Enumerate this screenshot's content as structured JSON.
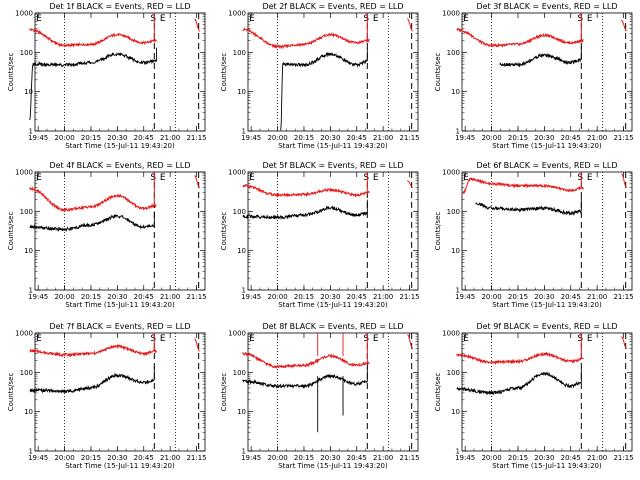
{
  "figure": {
    "x_tick_labels": [
      "19:45",
      "20:00",
      "20:15",
      "20:30",
      "20:45",
      "21:00",
      "21:15"
    ],
    "y_tick_labels": [
      "1",
      "10",
      "100",
      "1000"
    ],
    "ylabel": "Counts/sec",
    "xlabel": "Start Time (15-Jul-11 19:43:20)",
    "s_marker": "S",
    "e_marker": "E"
  },
  "chart_data": [
    {
      "type": "line",
      "title": "Det 1f BLACK = Events, RED = LLD",
      "yscale": "log",
      "ylim": [
        1,
        1000
      ],
      "black": [
        [
          19.67,
          2
        ],
        [
          19.7,
          50
        ],
        [
          20.0,
          48
        ],
        [
          20.25,
          55
        ],
        [
          20.5,
          90
        ],
        [
          20.75,
          55
        ],
        [
          20.87,
          60
        ]
      ],
      "red": [
        [
          19.67,
          380
        ],
        [
          20.0,
          150
        ],
        [
          20.25,
          160
        ],
        [
          20.5,
          280
        ],
        [
          20.75,
          175
        ],
        [
          20.87,
          200
        ],
        [
          21.23,
          700
        ],
        [
          21.28,
          350
        ]
      ],
      "spikes": []
    },
    {
      "type": "line",
      "title": "Det 2f BLACK = Events, RED = LLD",
      "yscale": "log",
      "ylim": [
        1,
        1000
      ],
      "black": [
        [
          20.03,
          1
        ],
        [
          20.05,
          50
        ],
        [
          20.25,
          48
        ],
        [
          20.5,
          90
        ],
        [
          20.75,
          48
        ],
        [
          20.85,
          60
        ]
      ],
      "red": [
        [
          19.67,
          380
        ],
        [
          20.0,
          140
        ],
        [
          20.25,
          160
        ],
        [
          20.5,
          280
        ],
        [
          20.75,
          175
        ],
        [
          20.87,
          200
        ],
        [
          21.23,
          700
        ],
        [
          21.28,
          350
        ]
      ],
      "spikes": []
    },
    {
      "type": "line",
      "title": "Det 3f BLACK = Events, RED = LLD",
      "yscale": "log",
      "ylim": [
        1,
        1000
      ],
      "black": [
        [
          20.08,
          50
        ],
        [
          20.25,
          48
        ],
        [
          20.5,
          85
        ],
        [
          20.75,
          55
        ],
        [
          20.85,
          65
        ]
      ],
      "red": [
        [
          19.67,
          380
        ],
        [
          20.0,
          150
        ],
        [
          20.25,
          160
        ],
        [
          20.5,
          270
        ],
        [
          20.75,
          175
        ],
        [
          20.87,
          200
        ],
        [
          21.23,
          650
        ],
        [
          21.28,
          350
        ]
      ],
      "spikes": []
    },
    {
      "type": "line",
      "title": "Det 4f BLACK = Events, RED = LLD",
      "yscale": "log",
      "ylim": [
        1,
        1000
      ],
      "black": [
        [
          19.67,
          40
        ],
        [
          20.0,
          35
        ],
        [
          20.25,
          45
        ],
        [
          20.5,
          75
        ],
        [
          20.75,
          40
        ],
        [
          20.85,
          45
        ]
      ],
      "red": [
        [
          19.67,
          380
        ],
        [
          20.0,
          110
        ],
        [
          20.25,
          130
        ],
        [
          20.5,
          250
        ],
        [
          20.75,
          120
        ],
        [
          20.87,
          140
        ],
        [
          21.23,
          800
        ],
        [
          21.28,
          400
        ]
      ],
      "spikes": []
    },
    {
      "type": "line",
      "title": "Det 5f BLACK = Events, RED = LLD",
      "yscale": "log",
      "ylim": [
        1,
        1000
      ],
      "black": [
        [
          19.67,
          75
        ],
        [
          20.0,
          70
        ],
        [
          20.25,
          80
        ],
        [
          20.5,
          120
        ],
        [
          20.75,
          80
        ],
        [
          20.85,
          90
        ]
      ],
      "red": [
        [
          19.67,
          450
        ],
        [
          20.0,
          260
        ],
        [
          20.25,
          270
        ],
        [
          20.5,
          350
        ],
        [
          20.75,
          260
        ],
        [
          20.87,
          300
        ],
        [
          21.23,
          600
        ],
        [
          21.28,
          400
        ]
      ],
      "spikes": []
    },
    {
      "type": "line",
      "title": "Det 6f BLACK = Events, RED = LLD",
      "yscale": "log",
      "ylim": [
        1,
        1000
      ],
      "black": [
        [
          19.85,
          160
        ],
        [
          20.0,
          120
        ],
        [
          20.25,
          110
        ],
        [
          20.5,
          120
        ],
        [
          20.75,
          90
        ],
        [
          20.85,
          100
        ]
      ],
      "red": [
        [
          19.73,
          300
        ],
        [
          19.8,
          650
        ],
        [
          20.0,
          500
        ],
        [
          20.25,
          450
        ],
        [
          20.5,
          450
        ],
        [
          20.75,
          340
        ],
        [
          20.87,
          400
        ],
        [
          21.23,
          900
        ],
        [
          21.28,
          400
        ]
      ],
      "spikes": []
    },
    {
      "type": "line",
      "title": "Det 7f BLACK = Events, RED = LLD",
      "yscale": "log",
      "ylim": [
        1,
        1000
      ],
      "black": [
        [
          19.67,
          35
        ],
        [
          20.0,
          33
        ],
        [
          20.25,
          40
        ],
        [
          20.5,
          85
        ],
        [
          20.75,
          55
        ],
        [
          20.85,
          65
        ]
      ],
      "red": [
        [
          19.67,
          350
        ],
        [
          20.0,
          280
        ],
        [
          20.25,
          300
        ],
        [
          20.5,
          460
        ],
        [
          20.75,
          300
        ],
        [
          20.87,
          350
        ],
        [
          21.23,
          700
        ],
        [
          21.28,
          350
        ]
      ],
      "spikes": []
    },
    {
      "type": "line",
      "title": "Det 8f BLACK = Events, RED = LLD",
      "yscale": "log",
      "ylim": [
        1,
        1000
      ],
      "black": [
        [
          19.67,
          60
        ],
        [
          20.0,
          45
        ],
        [
          20.25,
          45
        ],
        [
          20.5,
          80
        ],
        [
          20.75,
          50
        ],
        [
          20.85,
          60
        ]
      ],
      "red": [
        [
          19.67,
          300
        ],
        [
          20.0,
          140
        ],
        [
          20.25,
          150
        ],
        [
          20.5,
          260
        ],
        [
          20.75,
          150
        ],
        [
          20.87,
          170
        ],
        [
          21.23,
          900
        ],
        [
          21.28,
          400
        ]
      ],
      "spikes": [
        {
          "x": 20.38,
          "y": 3
        },
        {
          "x": 20.62,
          "y": 8
        }
      ]
    },
    {
      "type": "line",
      "title": "Det 9f BLACK = Events, RED = LLD",
      "yscale": "log",
      "ylim": [
        1,
        1000
      ],
      "black": [
        [
          19.67,
          38
        ],
        [
          20.0,
          30
        ],
        [
          20.25,
          40
        ],
        [
          20.5,
          95
        ],
        [
          20.75,
          45
        ],
        [
          20.85,
          55
        ]
      ],
      "red": [
        [
          19.67,
          280
        ],
        [
          20.0,
          180
        ],
        [
          20.25,
          190
        ],
        [
          20.5,
          290
        ],
        [
          20.75,
          190
        ],
        [
          20.87,
          220
        ],
        [
          21.23,
          800
        ],
        [
          21.28,
          400
        ]
      ],
      "spikes": []
    }
  ]
}
